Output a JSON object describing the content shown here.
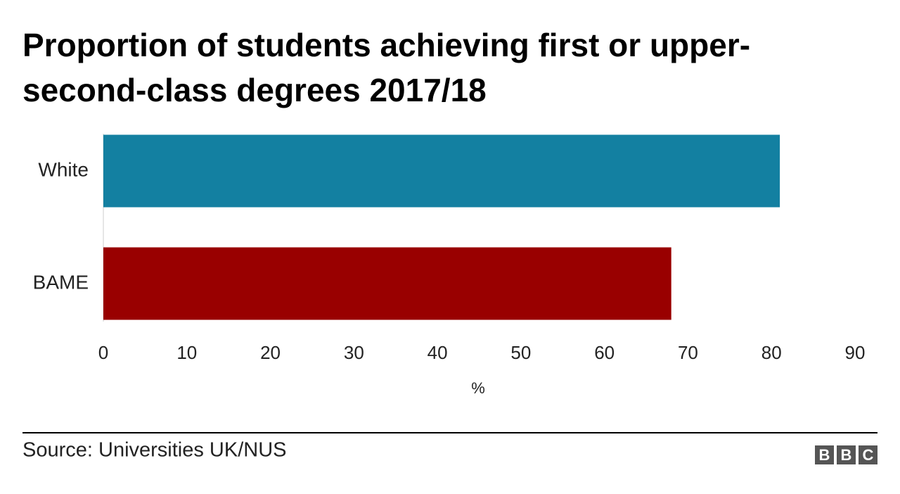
{
  "chart_data": {
    "type": "bar",
    "orientation": "horizontal",
    "title": "Proportion of students achieving first or upper-second-class degrees 2017/18",
    "categories": [
      "White",
      "BAME"
    ],
    "values": [
      81,
      68
    ],
    "colors": [
      "#1380a1",
      "#990000"
    ],
    "xlim": [
      0,
      90
    ],
    "xticks": [
      0,
      10,
      20,
      30,
      40,
      50,
      60,
      70,
      80,
      90
    ],
    "xlabel": "%",
    "source": "Source: Universities UK/NUS",
    "logo": [
      "B",
      "B",
      "C"
    ]
  }
}
